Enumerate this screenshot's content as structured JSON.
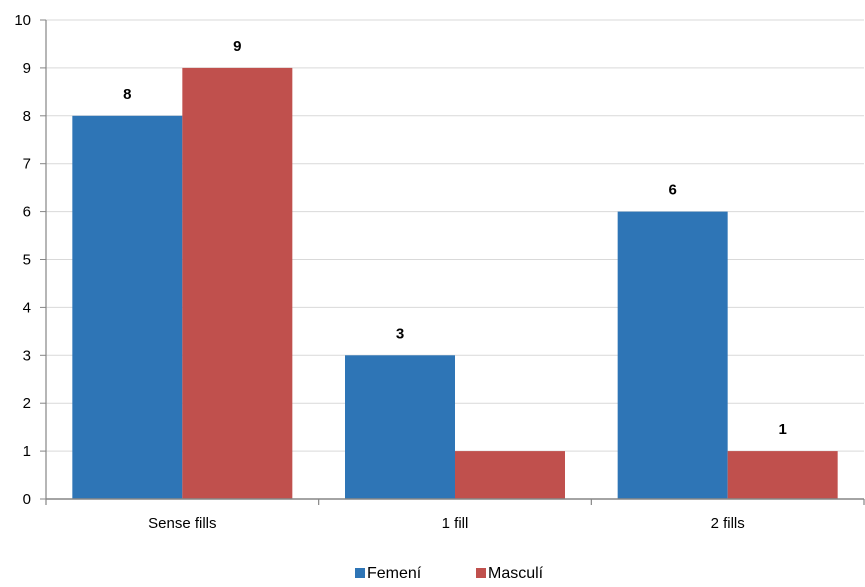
{
  "chart_data": {
    "type": "bar",
    "categories": [
      "Sense fills",
      "1 fill",
      "2 fills"
    ],
    "series": [
      {
        "name": "Femení",
        "values": [
          8,
          3,
          6
        ],
        "color": "#2E75B6"
      },
      {
        "name": "Masculí",
        "values": [
          9,
          1,
          1
        ],
        "color": "#C0504D"
      }
    ],
    "data_labels": [
      [
        "8",
        "3",
        "6"
      ],
      [
        "9",
        "",
        "1"
      ]
    ],
    "title": "",
    "xlabel": "",
    "ylabel": "",
    "ylim": [
      0,
      10
    ],
    "yticks": [
      "0",
      "1",
      "2",
      "3",
      "4",
      "5",
      "6",
      "7",
      "8",
      "9",
      "10"
    ],
    "grid": true,
    "legend": "bottom-center"
  }
}
